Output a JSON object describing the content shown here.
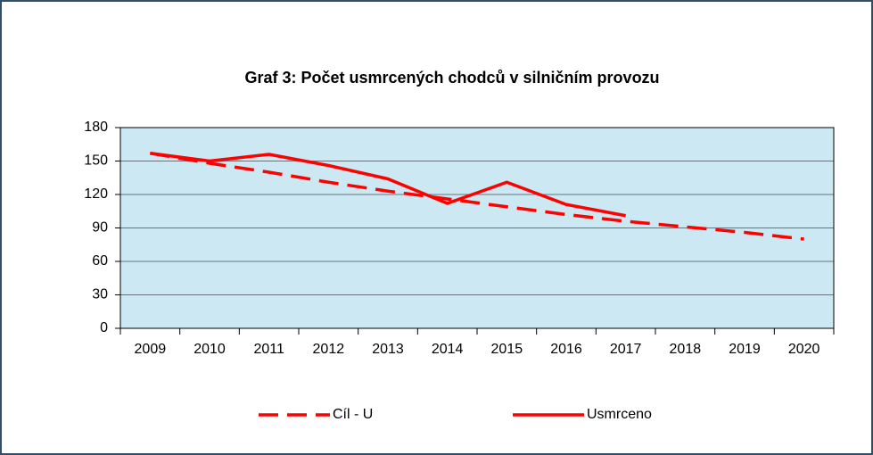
{
  "chart_data": {
    "type": "line",
    "title": "Graf 3: Počet usmrcených chodců v silničním provozu",
    "categories": [
      "2009",
      "2010",
      "2011",
      "2012",
      "2013",
      "2014",
      "2015",
      "2016",
      "2017",
      "2018",
      "2019",
      "2020"
    ],
    "series": [
      {
        "name": "Cíl - U",
        "color": "#ff0000",
        "style": "dashed",
        "values": [
          157,
          148,
          140,
          131,
          123,
          116,
          109,
          102,
          96,
          91,
          86,
          80
        ]
      },
      {
        "name": "Usmrceno",
        "color": "#ff0000",
        "style": "solid",
        "values": [
          157,
          150,
          156,
          146,
          134,
          112,
          131,
          111,
          101,
          null,
          null,
          null
        ]
      }
    ],
    "ylim": [
      0,
      180
    ],
    "yticks": [
      0,
      30,
      60,
      90,
      120,
      150,
      180
    ],
    "grid": true,
    "legend": "bottom"
  }
}
